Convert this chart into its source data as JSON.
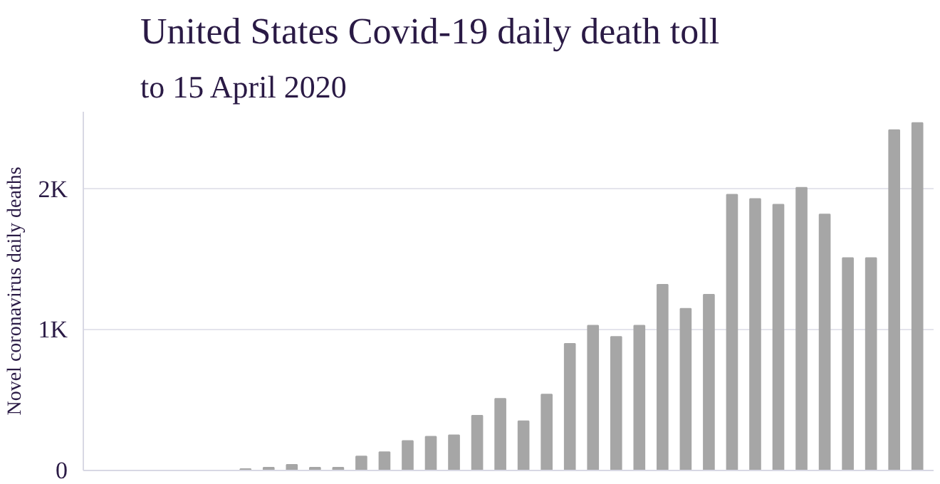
{
  "chart_data": {
    "type": "bar",
    "title": "United States Covid-19 daily death toll",
    "subtitle": "to 15 April 2020",
    "ylabel": "Novel coronavirus daily deaths",
    "categories": [
      null,
      null,
      null,
      null,
      null,
      null,
      null,
      null,
      null,
      null,
      null,
      null,
      null,
      null,
      null,
      null,
      null,
      null,
      null,
      null,
      null,
      null,
      null,
      null,
      null,
      null,
      null,
      null,
      null,
      null,
      null,
      null,
      null,
      null,
      null,
      null
    ],
    "values": [
      0,
      0,
      0,
      0,
      0,
      0,
      10,
      20,
      40,
      20,
      20,
      100,
      130,
      210,
      240,
      250,
      390,
      510,
      350,
      540,
      900,
      1030,
      950,
      1030,
      1320,
      1150,
      1250,
      1960,
      1930,
      1890,
      2010,
      1820,
      1510,
      1510,
      2420,
      2470
    ],
    "color": "#a6a6a6",
    "ylim": [
      0,
      2550
    ],
    "yticks": [
      {
        "value": 0,
        "label": "0"
      },
      {
        "value": 1000,
        "label": "1K"
      },
      {
        "value": 2000,
        "label": "2K"
      }
    ],
    "grid": "y"
  }
}
